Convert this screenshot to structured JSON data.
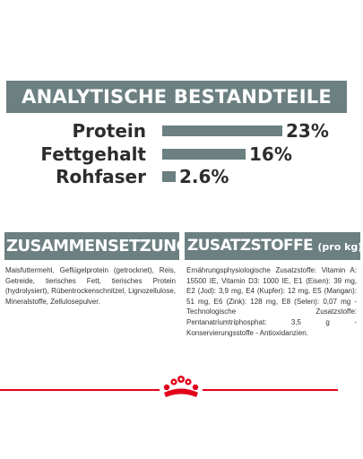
{
  "banner": {
    "title": "ANALYTISCHE BESTANDTEILE"
  },
  "analytics": [
    {
      "label": "Protein",
      "value": "23%",
      "percent": 23
    },
    {
      "label": "Fettgehalt",
      "value": "16%",
      "percent": 16
    },
    {
      "label": "Rohfaser",
      "value": "2.6%",
      "percent": 2.6
    }
  ],
  "composition": {
    "heading": "ZUSAMMENSETZUNG",
    "text": "Maisfuttermehl, Geflügelprotein (getrocknet), Reis, Getreide, tierisches Fett, tierisches Protein (hydrolysiert), Rübentrockenschnitzel, Lignozellulose, Mineralstoffe, Zellulosepulver."
  },
  "additives": {
    "heading": "ZUSATZSTOFFE",
    "heading_suffix": "(pro kg)",
    "text": "Ernährungsphysiologische Zusatzstoffe: Vitamin A: 15500 IE, Vitamin D3: 1000 IE, E1 (Eisen): 39 mg, E2 (Jod): 3,9 mg, E4 (Kupfer): 12 mg, E5 (Mangan): 51 mg, E6 (Zink): 128 mg, E8 (Selen): 0,07 mg - Technologische Zusatzstoffe: Pentanatriumtriphosphat: 3,5 g - Konservierungsstoffe - Antioxidanzien."
  },
  "colors": {
    "accent": "#6c7f81",
    "brand_red": "#e2001a",
    "text": "#2d2d2d"
  },
  "footer": {
    "logo_icon": "royal-canin-crown-icon"
  }
}
